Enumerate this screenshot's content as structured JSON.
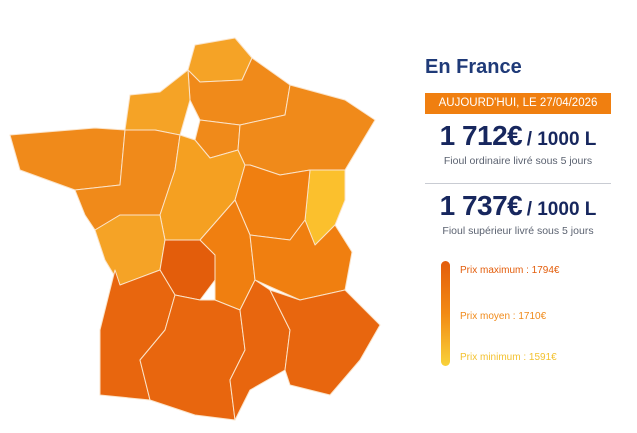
{
  "panel": {
    "title": "En France",
    "date": "AUJOURD'HUI, LE 27/04/2026",
    "prices": [
      {
        "price": "1 712€",
        "unit": "/ 1000 L",
        "description": "Fioul ordinaire livré sous 5 jours"
      },
      {
        "price": "1 737€",
        "unit": "/ 1000 L",
        "description": "Fioul supérieur livré sous 5 jours"
      }
    ],
    "legend": [
      "Prix maximum : 1794€",
      "Prix moyen : 1710€",
      "Prix minimum : 1591€"
    ]
  }
}
